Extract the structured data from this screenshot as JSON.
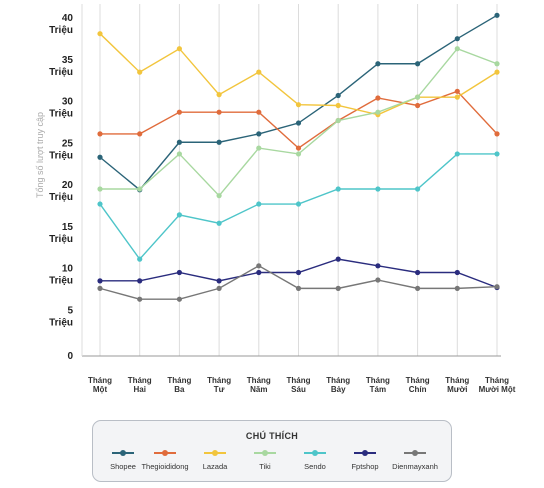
{
  "chart_data": {
    "type": "line",
    "title": "",
    "ylabel": "Tổng số lượt truy cập",
    "xlabel": "",
    "ylim": [
      0,
      40
    ],
    "yticks": [
      {
        "value": 0,
        "lines": [
          "0"
        ]
      },
      {
        "value": 5,
        "lines": [
          "5",
          "Triệu"
        ]
      },
      {
        "value": 10,
        "lines": [
          "10",
          "Triệu"
        ]
      },
      {
        "value": 15,
        "lines": [
          "15",
          "Triệu"
        ]
      },
      {
        "value": 20,
        "lines": [
          "20",
          "Triệu"
        ]
      },
      {
        "value": 25,
        "lines": [
          "25",
          "Triệu"
        ]
      },
      {
        "value": 30,
        "lines": [
          "30",
          "Triệu"
        ]
      },
      {
        "value": 35,
        "lines": [
          "35",
          "Triệu"
        ]
      },
      {
        "value": 40,
        "lines": [
          "40",
          "Triệu"
        ]
      }
    ],
    "categories": [
      [
        "Tháng",
        "Một"
      ],
      [
        "Tháng",
        "Hai"
      ],
      [
        "Tháng",
        "Ba"
      ],
      [
        "Tháng",
        "Tư"
      ],
      [
        "Tháng",
        "Năm"
      ],
      [
        "Tháng",
        "Sáu"
      ],
      [
        "Tháng",
        "Bảy"
      ],
      [
        "Tháng",
        "Tám"
      ],
      [
        "Tháng",
        "Chín"
      ],
      [
        "Tháng",
        "Mười"
      ],
      [
        "Tháng",
        "Mười Một"
      ]
    ],
    "series": [
      {
        "name": "Shopee",
        "color": "#2b6478",
        "values": [
          23.8,
          19.9,
          25.6,
          25.6,
          26.6,
          27.9,
          31.2,
          35.0,
          35.0,
          38.0,
          40.8
        ]
      },
      {
        "name": "Thegioididong",
        "color": "#e06c3c",
        "values": [
          26.6,
          26.6,
          29.2,
          29.2,
          29.2,
          24.9,
          28.2,
          30.9,
          30.0,
          31.7,
          26.6
        ]
      },
      {
        "name": "Lazada",
        "color": "#f2c53d",
        "values": [
          38.6,
          34.0,
          36.8,
          31.3,
          34.0,
          30.1,
          30.0,
          28.9,
          31.0,
          31.0,
          34.0
        ]
      },
      {
        "name": "Tiki",
        "color": "#a8d8a0",
        "values": [
          20.0,
          20.0,
          24.2,
          19.2,
          24.9,
          24.2,
          28.2,
          29.2,
          31.0,
          36.8,
          35.0
        ]
      },
      {
        "name": "Sendo",
        "color": "#4ec5c9",
        "values": [
          18.2,
          11.6,
          16.9,
          15.9,
          18.2,
          18.2,
          20.0,
          20.0,
          20.0,
          24.2,
          24.2
        ]
      },
      {
        "name": "Fptshop",
        "color": "#2a2c7e",
        "values": [
          9.0,
          9.0,
          10.0,
          9.0,
          10.0,
          10.0,
          11.6,
          10.8,
          10.0,
          10.0,
          8.2
        ]
      },
      {
        "name": "Dienmayxanh",
        "color": "#777777",
        "values": [
          8.1,
          6.8,
          6.8,
          8.1,
          10.8,
          8.1,
          8.1,
          9.1,
          8.1,
          8.1,
          8.3
        ]
      }
    ]
  },
  "legend": {
    "title": "CHÚ THÍCH",
    "items": [
      {
        "label": "Shopee",
        "color": "#2b6478"
      },
      {
        "label": "Thegioididong",
        "color": "#e06c3c"
      },
      {
        "label": "Lazada",
        "color": "#f2c53d"
      },
      {
        "label": "Tiki",
        "color": "#a8d8a0"
      },
      {
        "label": "Sendo",
        "color": "#4ec5c9"
      },
      {
        "label": "Fptshop",
        "color": "#2a2c7e"
      },
      {
        "label": "Dienmayxanh",
        "color": "#777777"
      }
    ]
  }
}
